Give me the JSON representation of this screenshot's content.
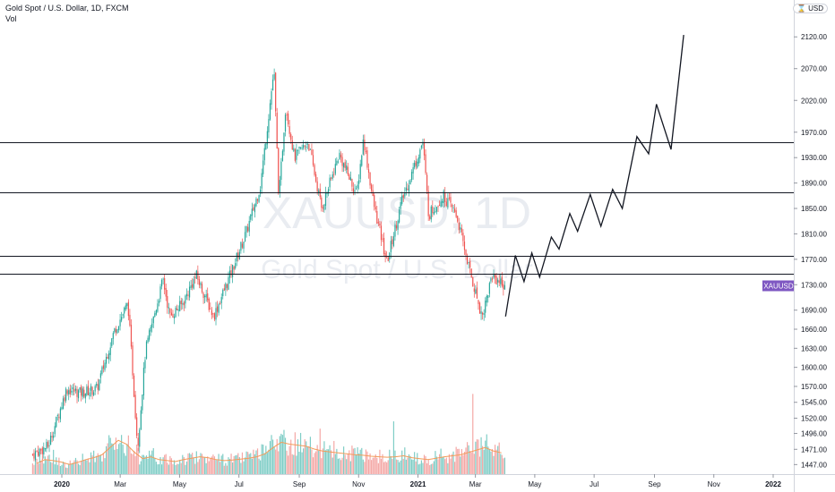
{
  "header": {
    "title": "Gold Spot / U.S. Dollar, 1D, FXCM",
    "indicator": "Vol",
    "currency": "USD"
  },
  "watermark": {
    "symbol": "XAUUSD, 1D",
    "name": "Gold Spot / U.S. Dollar"
  },
  "colors": {
    "up": "#26a69a",
    "down": "#ef5350",
    "vol_up": "#7fcdc6",
    "vol_down": "#f4a8a6",
    "vol_ma": "#f39c5a",
    "level_line": "#131722",
    "projection": "#131722",
    "symbol_badge": "#7e57c2"
  },
  "chart_data": {
    "type": "line",
    "title": "Gold Spot / U.S. Dollar, 1D, FXCM",
    "ylim": [
      1432,
      2178
    ],
    "x_ticks": [
      "2020",
      "Mar",
      "May",
      "Jul",
      "Sep",
      "Nov",
      "2021",
      "Mar",
      "May",
      "Jul",
      "Sep",
      "Nov",
      "2022"
    ],
    "y_ticks": [
      2120,
      2070,
      2020,
      1970,
      1930,
      1890,
      1850,
      1810,
      1770,
      1730,
      1690,
      1660,
      1630,
      1600,
      1570,
      1545,
      1520,
      1496,
      1471,
      1447
    ],
    "price_levels": [
      {
        "label": "1954.70",
        "value": 1954.7
      },
      {
        "label": "1875.90",
        "value": 1875.9
      },
      {
        "label": "1774.82",
        "value": 1774.82
      },
      {
        "label": "1747.87",
        "value": 1747.87
      }
    ],
    "last_price": {
      "symbol": "XAUUSD",
      "label": "1728.32",
      "value": 1728.32
    },
    "price_path": [
      [
        "2019-12-02",
        1463
      ],
      [
        "2019-12-18",
        1476
      ],
      [
        "2020-01-06",
        1566
      ],
      [
        "2020-01-20",
        1560
      ],
      [
        "2020-02-06",
        1566
      ],
      [
        "2020-02-24",
        1658
      ],
      [
        "2020-03-09",
        1700
      ],
      [
        "2020-03-19",
        1475
      ],
      [
        "2020-03-27",
        1626
      ],
      [
        "2020-04-14",
        1738
      ],
      [
        "2020-04-21",
        1680
      ],
      [
        "2020-05-04",
        1700
      ],
      [
        "2020-05-18",
        1745
      ],
      [
        "2020-06-05",
        1680
      ],
      [
        "2020-06-22",
        1745
      ],
      [
        "2020-07-08",
        1810
      ],
      [
        "2020-07-23",
        1885
      ],
      [
        "2020-08-06",
        2068
      ],
      [
        "2020-08-11",
        1865
      ],
      [
        "2020-08-18",
        2012
      ],
      [
        "2020-08-27",
        1930
      ],
      [
        "2020-09-10",
        1955
      ],
      [
        "2020-09-24",
        1850
      ],
      [
        "2020-10-12",
        1935
      ],
      [
        "2020-10-30",
        1872
      ],
      [
        "2020-11-06",
        1960
      ],
      [
        "2020-11-16",
        1860
      ],
      [
        "2020-11-30",
        1765
      ],
      [
        "2020-12-15",
        1860
      ],
      [
        "2021-01-06",
        1955
      ],
      [
        "2021-01-12",
        1840
      ],
      [
        "2021-01-27",
        1870
      ],
      [
        "2021-02-09",
        1842
      ],
      [
        "2021-02-26",
        1735
      ],
      [
        "2021-03-08",
        1680
      ],
      [
        "2021-03-18",
        1745
      ],
      [
        "2021-04-01",
        1728
      ]
    ],
    "volume_relative": [
      0.22,
      0.3,
      0.28,
      0.25,
      0.2,
      0.24,
      0.3,
      0.34,
      0.4,
      0.55,
      0.7,
      0.62,
      0.45,
      0.32,
      0.36,
      0.3,
      0.28,
      0.26,
      0.3,
      0.33,
      0.36,
      0.34,
      0.3,
      0.28,
      0.29,
      0.31,
      0.33,
      0.36,
      0.42,
      0.55,
      0.66,
      0.62,
      0.6,
      0.58,
      0.52,
      0.48,
      0.46,
      0.44,
      0.42,
      0.4,
      0.39,
      0.37,
      0.36,
      0.35,
      0.36,
      0.38,
      0.34,
      0.32,
      0.3,
      0.33,
      0.36,
      0.38,
      0.4,
      0.45,
      0.5,
      0.55,
      0.48,
      0.44
    ],
    "projection": [
      [
        "2021-04-01",
        1680
      ],
      [
        "2021-04-11",
        1776
      ],
      [
        "2021-04-20",
        1735
      ],
      [
        "2021-04-28",
        1780
      ],
      [
        "2021-05-06",
        1742
      ],
      [
        "2021-05-18",
        1805
      ],
      [
        "2021-05-26",
        1786
      ],
      [
        "2021-06-06",
        1842
      ],
      [
        "2021-06-14",
        1814
      ],
      [
        "2021-06-27",
        1872
      ],
      [
        "2021-07-08",
        1822
      ],
      [
        "2021-07-20",
        1880
      ],
      [
        "2021-07-30",
        1850
      ],
      [
        "2021-08-14",
        1963
      ],
      [
        "2021-08-26",
        1936
      ],
      [
        "2021-09-03",
        2014
      ],
      [
        "2021-09-18",
        1943
      ],
      [
        "2021-10-01",
        2123
      ]
    ]
  }
}
